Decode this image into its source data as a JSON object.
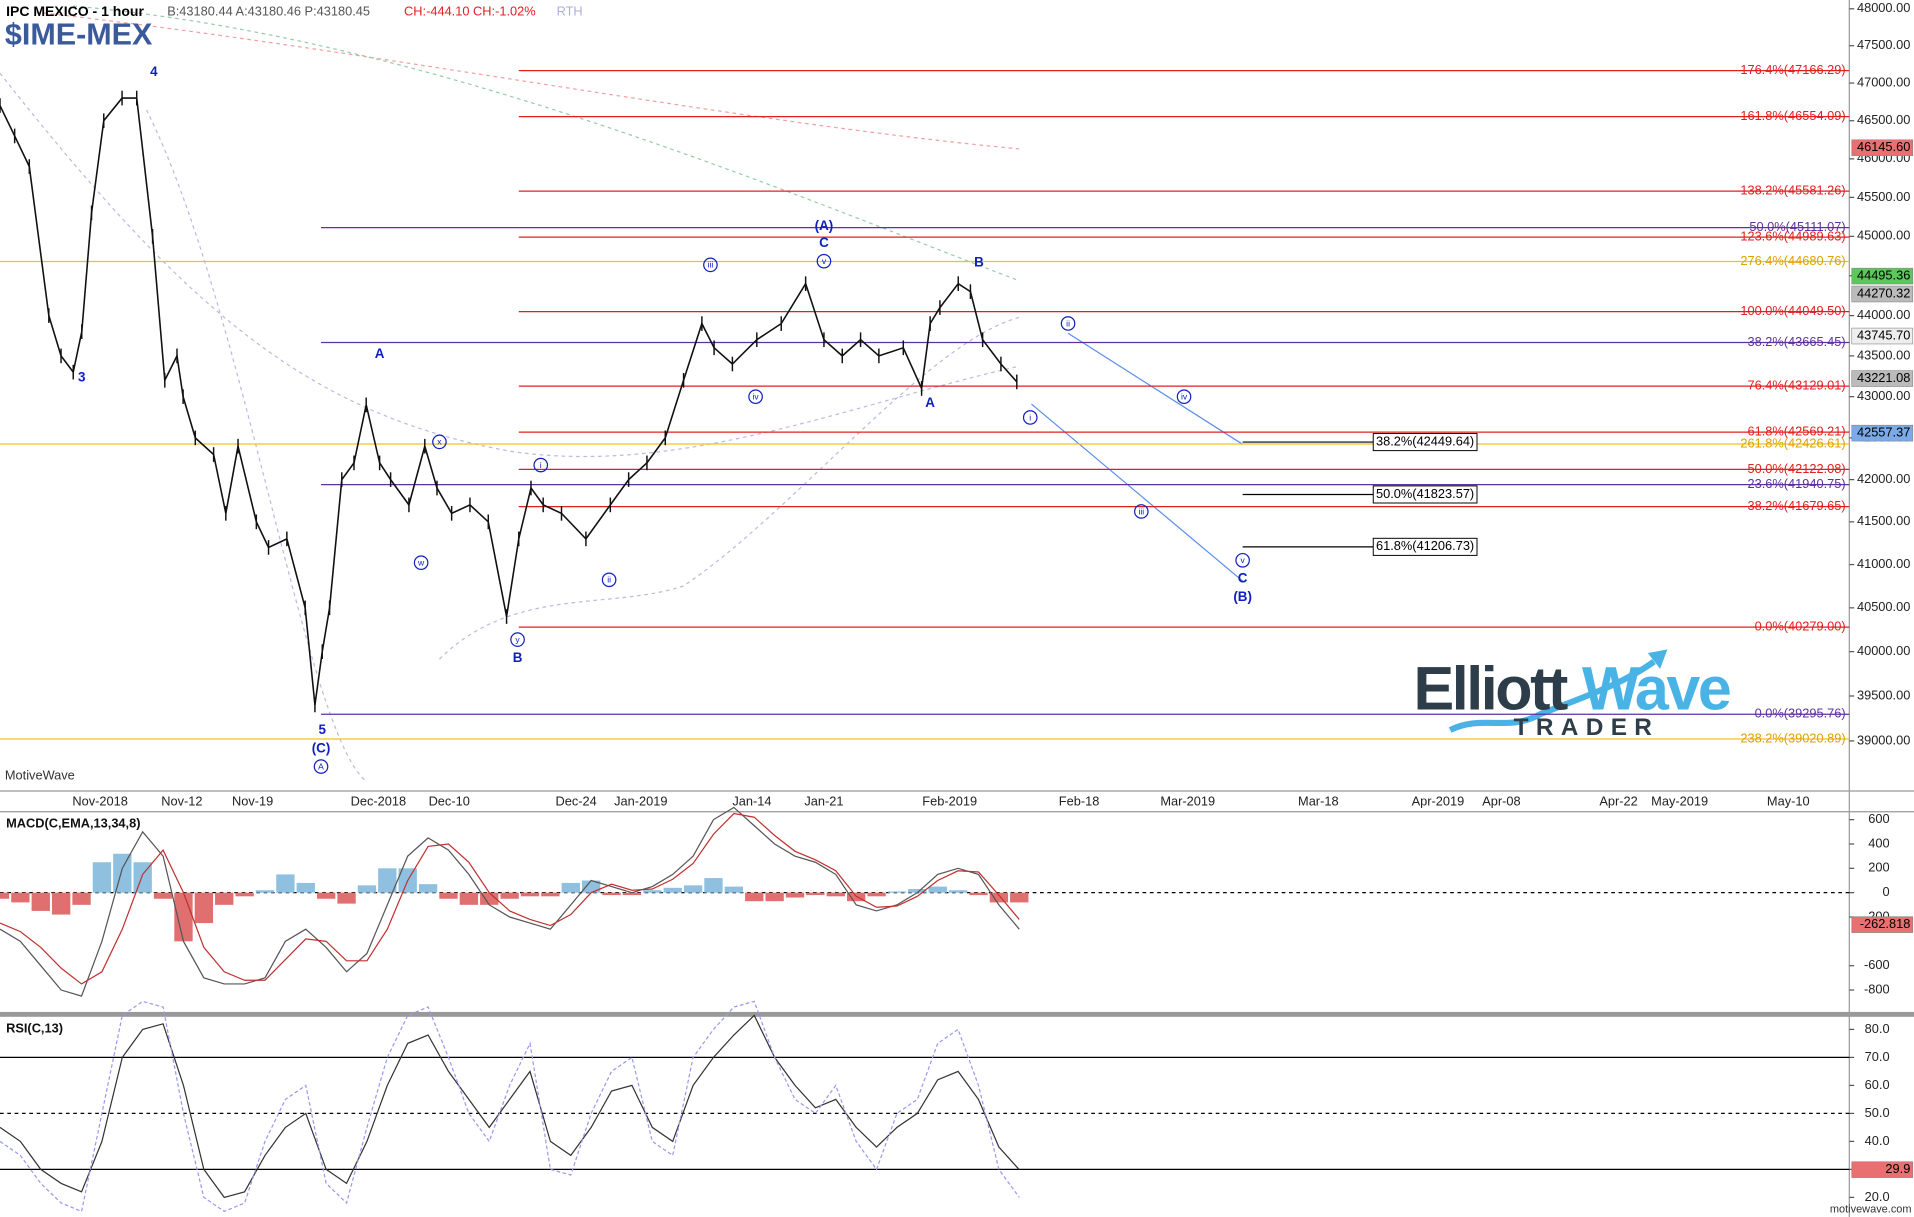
{
  "chart_data": [
    {
      "type": "line",
      "title": "IPC MEXICO - 1 hour",
      "quote": "B:43180.44 A:43180.46 P:43180.45",
      "change": "CH:-444.10 CH:-1.02%",
      "session": "RTH",
      "symbol": "$IME-MEX",
      "log_scale": true,
      "ylim": [
        38450,
        48120
      ],
      "yticks": [
        {
          "value": 39000,
          "label": "39000.00"
        },
        {
          "value": 39500,
          "label": "39500.00"
        },
        {
          "value": 40000,
          "label": "40000.00"
        },
        {
          "value": 40500,
          "label": "40500.00"
        },
        {
          "value": 41000,
          "label": "41000.00"
        },
        {
          "value": 41500,
          "label": "41500.00"
        },
        {
          "value": 42000,
          "label": "42000.00"
        },
        {
          "value": 42500,
          "label": "42500.00"
        },
        {
          "value": 43000,
          "label": "43000.00"
        },
        {
          "value": 43500,
          "label": "43500.00"
        },
        {
          "value": 44000,
          "label": "44000.00"
        },
        {
          "value": 44500,
          "label": "44500.00"
        },
        {
          "value": 45000,
          "label": "45000.00"
        },
        {
          "value": 45500,
          "label": "45500.00"
        },
        {
          "value": 46000,
          "label": "46000.00"
        },
        {
          "value": 46500,
          "label": "46500.00"
        },
        {
          "value": 47000,
          "label": "47000.00"
        },
        {
          "value": 47500,
          "label": "47500.00"
        },
        {
          "value": 48000,
          "label": "48000.00"
        }
      ],
      "xtick_labels": [
        "Nov-2018",
        "Nov-12",
        "Nov-19",
        "Dec-2018",
        "Dec-10",
        "Dec-24",
        "Jan-2019",
        "Jan-14",
        "Jan-21",
        "Feb-2019",
        "Feb-18",
        "Mar-2019",
        "Mar-18",
        "Apr-2019",
        "Apr-08",
        "Apr-22",
        "May-2019",
        "May-10"
      ],
      "color": "#111111",
      "values": [
        46700,
        46300,
        45900,
        44000,
        43500,
        43300,
        43800,
        45300,
        46500,
        46800,
        46800,
        45000,
        43200,
        43500,
        43000,
        42500,
        42300,
        41600,
        42400,
        41500,
        41200,
        41300,
        40500,
        39400,
        40000,
        40500,
        42000,
        42200,
        42900,
        42200,
        42000,
        41700,
        42400,
        41900,
        41600,
        41700,
        41500,
        40400,
        41300,
        41900,
        41700,
        41600,
        41300,
        41700,
        42000,
        42200,
        42500,
        43200,
        43900,
        43600,
        43400,
        43700,
        43900,
        44400,
        43700,
        43500,
        43700,
        43500,
        43600,
        43100,
        43900,
        44100,
        44400,
        44300,
        43700,
        43400,
        43180.45
      ],
      "levels": [
        {
          "label": "176.4%(47166.29)",
          "value": 47166.29,
          "color": "#e02020"
        },
        {
          "label": "161.8%(46554.09)",
          "value": 46554.09,
          "color": "#e02020"
        },
        {
          "label": "138.2%(45581.26)",
          "value": 45581.26,
          "color": "#e02020"
        },
        {
          "label": "50.0%(45111.07)",
          "value": 45111.07,
          "color": "#6030a0"
        },
        {
          "label": "123.6%(44989.63)",
          "value": 44989.63,
          "color": "#e02020"
        },
        {
          "label": "276.4%(44680.76)",
          "value": 44680.76,
          "color": "#f0c020"
        },
        {
          "label": "100.0%(44049.50)",
          "value": 44049.5,
          "color": "#e02020"
        },
        {
          "label": "38.2%(43665.45)",
          "value": 43665.45,
          "color": "#6030a0"
        },
        {
          "label": "76.4%(43129.01)",
          "value": 43129.01,
          "color": "#e02020"
        },
        {
          "label": "61.8%(42569.21)",
          "value": 42569.21,
          "color": "#e02020"
        },
        {
          "label": "261.8%(42426.61)",
          "value": 42426.61,
          "color": "#f0c020"
        },
        {
          "label": "50.0%(42122.08)",
          "value": 42122.08,
          "color": "#e02020"
        },
        {
          "label": "23.6%(41940.75)",
          "value": 41940.75,
          "color": "#6030a0"
        },
        {
          "label": "38.2%(41679.65)",
          "value": 41679.65,
          "color": "#e02020"
        },
        {
          "label": "0.0%(40279.00)",
          "value": 40279,
          "color": "#e02020"
        },
        {
          "label": "0.0%(39295.76)",
          "value": 39295.76,
          "color": "#6030a0"
        },
        {
          "label": "238.2%(39020.89)",
          "value": 39020.89,
          "color": "#f0c020"
        }
      ],
      "targets": [
        {
          "label": "38.2%(42449.64)",
          "value": 42449.64
        },
        {
          "label": "50.0%(41823.57)",
          "value": 41823.57
        },
        {
          "label": "61.8%(41206.73)",
          "value": 41206.73
        }
      ],
      "price_tags": [
        {
          "value": 46145.6,
          "label": "46145.60",
          "color": "#e87070"
        },
        {
          "value": 44495.36,
          "label": "44495.36",
          "color": "#5cc85c"
        },
        {
          "value": 44270.32,
          "label": "44270.32",
          "color": "#bbbbbb"
        },
        {
          "value": 43745.7,
          "label": "43745.70",
          "color": "#eeeeee"
        },
        {
          "value": 43221.08,
          "label": "43221.08",
          "color": "#bbbbbb"
        },
        {
          "value": 42557.37,
          "label": "42557.37",
          "color": "#7aaae8"
        }
      ],
      "wave_labels": [
        "3",
        "4",
        "A",
        "x",
        "w",
        "5",
        "(C)",
        "A",
        "i",
        "y",
        "B",
        "ii",
        "iii",
        "iv",
        "(A)",
        "C",
        "v",
        "A",
        "B",
        "ii",
        "iv",
        "i",
        "iii",
        "v",
        "C",
        "(B)"
      ]
    },
    {
      "type": "macd",
      "title": "MACD(C,EMA,13,34,8)",
      "ylim": [
        -980,
        665
      ],
      "yticks": [
        600,
        400,
        200,
        0,
        -200,
        -600,
        -800
      ],
      "last_tag": -262.818,
      "series": [
        {
          "color": "#555555",
          "values": [
            -300,
            -400,
            -600,
            -800,
            -850,
            -400,
            200,
            500,
            300,
            -400,
            -700,
            -750,
            -750,
            -700,
            -400,
            -300,
            -450,
            -650,
            -500,
            -100,
            300,
            450,
            350,
            150,
            -100,
            -200,
            -250,
            -300,
            -100,
            100,
            50,
            0,
            50,
            150,
            300,
            600,
            700,
            550,
            400,
            300,
            250,
            150,
            -100,
            -150,
            -100,
            0,
            150,
            200,
            150,
            -100,
            -300
          ]
        },
        {
          "color": "#c03030",
          "values": [
            -250,
            -320,
            -450,
            -620,
            -750,
            -650,
            -300,
            150,
            350,
            0,
            -450,
            -650,
            -720,
            -720,
            -550,
            -380,
            -400,
            -560,
            -560,
            -300,
            100,
            380,
            400,
            250,
            0,
            -150,
            -220,
            -270,
            -180,
            0,
            70,
            20,
            30,
            110,
            240,
            480,
            650,
            620,
            470,
            340,
            270,
            180,
            -30,
            -120,
            -110,
            -30,
            100,
            180,
            170,
            -20,
            -220
          ]
        }
      ],
      "histogram": [
        -50,
        -80,
        -150,
        -180,
        -100,
        250,
        320,
        250,
        -50,
        -400,
        -250,
        -100,
        -30,
        20,
        150,
        80,
        -50,
        -90,
        60,
        200,
        200,
        70,
        -50,
        -100,
        -100,
        -50,
        -30,
        -30,
        80,
        100,
        -20,
        -20,
        20,
        40,
        60,
        120,
        50,
        -70,
        -70,
        -40,
        -20,
        -30,
        -70,
        -30,
        10,
        30,
        50,
        20,
        -20,
        -80,
        -80
      ]
    },
    {
      "type": "rsi",
      "title": "RSI(C,13)",
      "ylim": [
        13,
        84.5
      ],
      "yticks": [
        {
          "value": 20,
          "label": "20.0"
        },
        {
          "value": 30,
          "label": "30.0"
        },
        {
          "value": 40,
          "label": "40.0"
        },
        {
          "value": 50,
          "label": "50.0"
        },
        {
          "value": 60,
          "label": "60.0"
        },
        {
          "value": 70,
          "label": "70.0"
        },
        {
          "value": 80,
          "label": "80.0"
        }
      ],
      "levels": [
        70,
        50,
        30
      ],
      "last_tag": 29.9,
      "series": [
        {
          "color": "#333333",
          "values": [
            45,
            40,
            30,
            25,
            22,
            40,
            70,
            80,
            82,
            60,
            30,
            20,
            22,
            35,
            45,
            50,
            30,
            25,
            40,
            60,
            75,
            78,
            65,
            55,
            45,
            55,
            65,
            40,
            35,
            45,
            58,
            60,
            45,
            40,
            60,
            70,
            78,
            85,
            70,
            60,
            52,
            55,
            45,
            38,
            45,
            50,
            62,
            65,
            55,
            38,
            29.9
          ]
        },
        {
          "color": "#9999ee",
          "values": [
            40,
            35,
            25,
            18,
            15,
            50,
            85,
            90,
            88,
            50,
            20,
            15,
            18,
            40,
            55,
            60,
            25,
            18,
            45,
            70,
            85,
            88,
            70,
            50,
            40,
            60,
            75,
            30,
            28,
            50,
            65,
            70,
            40,
            35,
            70,
            80,
            88,
            90,
            70,
            55,
            50,
            60,
            40,
            30,
            50,
            55,
            75,
            80,
            60,
            30,
            20
          ]
        }
      ]
    }
  ],
  "branding": {
    "platform": "MotiveWave",
    "logo_word1": "Elliott",
    "logo_word2": "Wave",
    "logo_word3": "TRADER",
    "watermark": "motivewave.com"
  }
}
